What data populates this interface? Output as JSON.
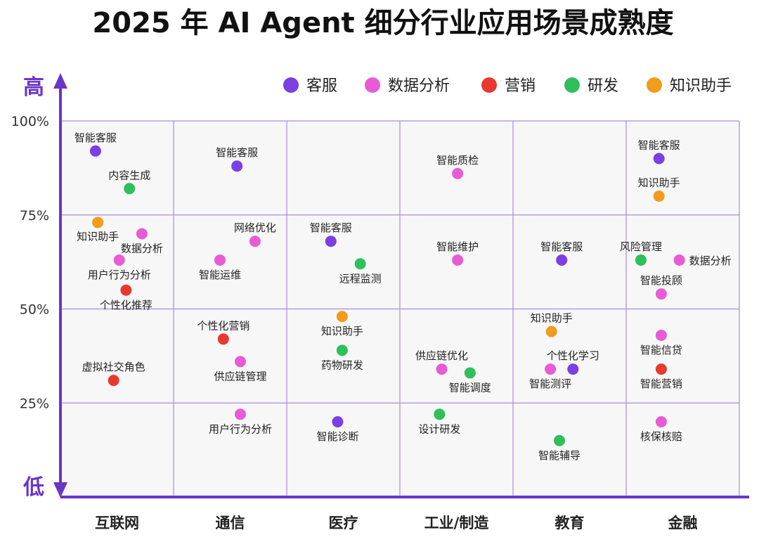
{
  "chart_data": {
    "type": "scatter",
    "title": "2025 年 AI Agent 细分行业应用场景成熟度",
    "categories": [
      "互联网",
      "通信",
      "医疗",
      "工业/制造",
      "教育",
      "金融"
    ],
    "ylim": [
      0,
      100
    ],
    "y_ticks": [
      "100%",
      "75%",
      "50%",
      "25%"
    ],
    "y_tick_values": [
      100,
      75,
      50,
      25
    ],
    "y_axis_high": "高",
    "y_axis_low": "低",
    "grid": true,
    "legend_position": "top-right",
    "series": [
      {
        "name": "客服",
        "color": "#7b3fe4"
      },
      {
        "name": "数据分析",
        "color": "#e75cd6"
      },
      {
        "name": "营销",
        "color": "#e8392f"
      },
      {
        "name": "研发",
        "color": "#2fbf5b"
      },
      {
        "name": "知识助手",
        "color": "#f29b1d"
      }
    ],
    "points": [
      {
        "label": "智能客服",
        "category": "互联网",
        "offset": 0.31,
        "y": 92,
        "series": "客服",
        "label_pos": "above"
      },
      {
        "label": "内容生成",
        "category": "互联网",
        "offset": 0.61,
        "y": 82,
        "series": "研发",
        "label_pos": "above"
      },
      {
        "label": "知识助手",
        "category": "互联网",
        "offset": 0.33,
        "y": 73,
        "series": "知识助手",
        "label_pos": "below-left"
      },
      {
        "label": "数据分析",
        "category": "互联网",
        "offset": 0.72,
        "y": 70,
        "series": "数据分析",
        "label_pos": "below"
      },
      {
        "label": "用户行为分析",
        "category": "互联网",
        "offset": 0.52,
        "y": 63,
        "series": "数据分析",
        "label_pos": "below"
      },
      {
        "label": "个性化推荐",
        "category": "互联网",
        "offset": 0.58,
        "y": 55,
        "series": "营销",
        "label_pos": "below"
      },
      {
        "label": "虚拟社交角色",
        "category": "互联网",
        "offset": 0.47,
        "y": 31,
        "series": "营销",
        "label_pos": "above"
      },
      {
        "label": "智能客服",
        "category": "通信",
        "offset": 0.56,
        "y": 88,
        "series": "客服",
        "label_pos": "above"
      },
      {
        "label": "网络优化",
        "category": "通信",
        "offset": 0.72,
        "y": 68,
        "series": "数据分析",
        "label_pos": "above"
      },
      {
        "label": "智能运维",
        "category": "通信",
        "offset": 0.41,
        "y": 63,
        "series": "数据分析",
        "label_pos": "below"
      },
      {
        "label": "个性化营销",
        "category": "通信",
        "offset": 0.44,
        "y": 42,
        "series": "营销",
        "label_pos": "above"
      },
      {
        "label": "供应链管理",
        "category": "通信",
        "offset": 0.59,
        "y": 36,
        "series": "数据分析",
        "label_pos": "below"
      },
      {
        "label": "用户行为分析",
        "category": "通信",
        "offset": 0.59,
        "y": 22,
        "series": "数据分析",
        "label_pos": "below"
      },
      {
        "label": "智能客服",
        "category": "医疗",
        "offset": 0.39,
        "y": 68,
        "series": "客服",
        "label_pos": "above"
      },
      {
        "label": "远程监测",
        "category": "医疗",
        "offset": 0.65,
        "y": 62,
        "series": "研发",
        "label_pos": "below"
      },
      {
        "label": "知识助手",
        "category": "医疗",
        "offset": 0.49,
        "y": 48,
        "series": "知识助手",
        "label_pos": "below"
      },
      {
        "label": "药物研发",
        "category": "医疗",
        "offset": 0.49,
        "y": 39,
        "series": "研发",
        "label_pos": "below"
      },
      {
        "label": "智能诊断",
        "category": "医疗",
        "offset": 0.45,
        "y": 20,
        "series": "客服",
        "label_pos": "below"
      },
      {
        "label": "智能质检",
        "category": "工业/制造",
        "offset": 0.51,
        "y": 86,
        "series": "数据分析",
        "label_pos": "above"
      },
      {
        "label": "智能维护",
        "category": "工业/制造",
        "offset": 0.51,
        "y": 63,
        "series": "数据分析",
        "label_pos": "above"
      },
      {
        "label": "供应链优化",
        "category": "工业/制造",
        "offset": 0.37,
        "y": 34,
        "series": "数据分析",
        "label_pos": "above"
      },
      {
        "label": "智能调度",
        "category": "工业/制造",
        "offset": 0.62,
        "y": 33,
        "series": "研发",
        "label_pos": "below"
      },
      {
        "label": "设计研发",
        "category": "工业/制造",
        "offset": 0.35,
        "y": 22,
        "series": "研发",
        "label_pos": "below"
      },
      {
        "label": "智能客服",
        "category": "教育",
        "offset": 0.43,
        "y": 63,
        "series": "客服",
        "label_pos": "above"
      },
      {
        "label": "知识助手",
        "category": "教育",
        "offset": 0.34,
        "y": 44,
        "series": "知识助手",
        "label_pos": "above"
      },
      {
        "label": "个性化学习",
        "category": "教育",
        "offset": 0.53,
        "y": 34,
        "series": "客服",
        "label_pos": "above"
      },
      {
        "label": "智能测评",
        "category": "教育",
        "offset": 0.33,
        "y": 34,
        "series": "数据分析",
        "label_pos": "below"
      },
      {
        "label": "智能辅导",
        "category": "教育",
        "offset": 0.41,
        "y": 15,
        "series": "研发",
        "label_pos": "below"
      },
      {
        "label": "智能客服",
        "category": "金融",
        "offset": 0.29,
        "y": 90,
        "series": "客服",
        "label_pos": "above"
      },
      {
        "label": "知识助手",
        "category": "金融",
        "offset": 0.29,
        "y": 80,
        "series": "知识助手",
        "label_pos": "above"
      },
      {
        "label": "风险管理",
        "category": "金融",
        "offset": 0.13,
        "y": 63,
        "series": "研发",
        "label_pos": "above"
      },
      {
        "label": "数据分析",
        "category": "金融",
        "offset": 0.47,
        "y": 63,
        "series": "数据分析",
        "label_pos": "right"
      },
      {
        "label": "智能投顾",
        "category": "金融",
        "offset": 0.31,
        "y": 54,
        "series": "数据分析",
        "label_pos": "above"
      },
      {
        "label": "智能信贷",
        "category": "金融",
        "offset": 0.31,
        "y": 43,
        "series": "数据分析",
        "label_pos": "below"
      },
      {
        "label": "智能营销",
        "category": "金融",
        "offset": 0.31,
        "y": 34,
        "series": "营销",
        "label_pos": "below"
      },
      {
        "label": "核保核赔",
        "category": "金融",
        "offset": 0.31,
        "y": 20,
        "series": "数据分析",
        "label_pos": "below"
      }
    ]
  },
  "colors": {
    "axis": "#6a35c8",
    "grid": "#a98be0",
    "plot_background": "#f7f7f7"
  }
}
